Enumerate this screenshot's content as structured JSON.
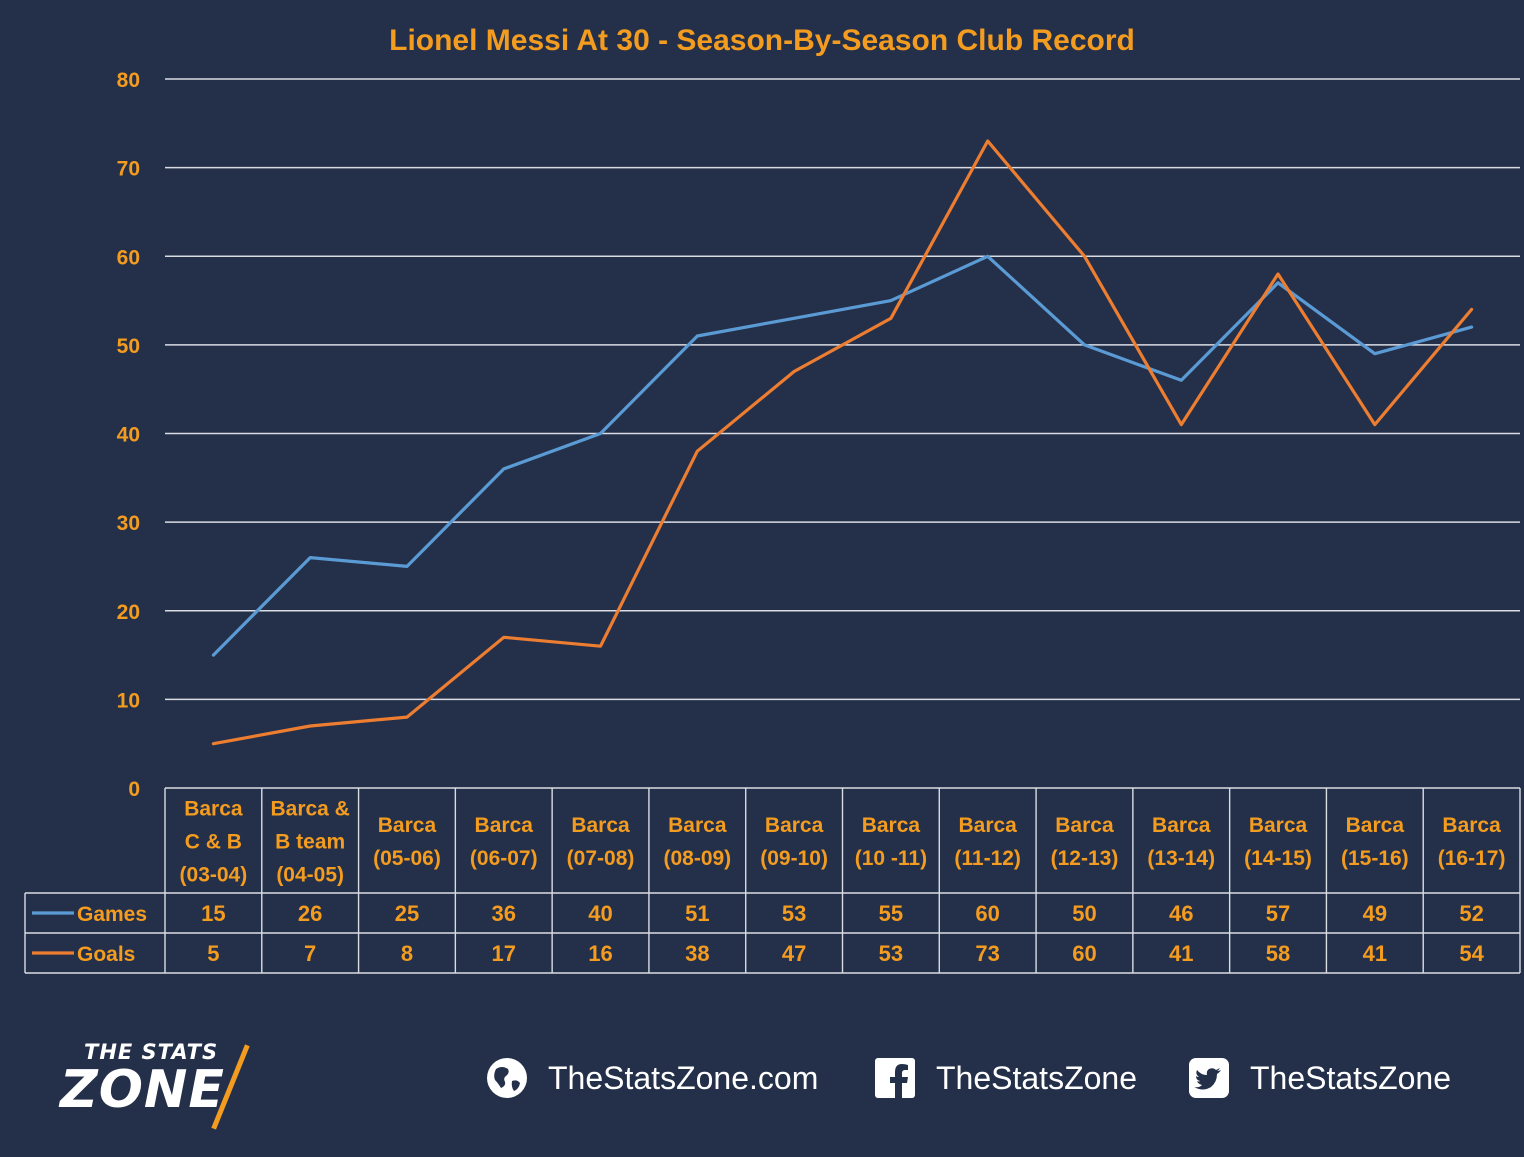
{
  "chart_data": {
    "type": "line",
    "title": "Lionel Messi At 30 - Season-By-Season Club Record",
    "categories": [
      [
        "Barca",
        "C & B",
        "(03-04)"
      ],
      [
        "Barca &",
        "B team",
        "(04-05)"
      ],
      [
        "Barca",
        "(05-06)"
      ],
      [
        "Barca",
        "(06-07)"
      ],
      [
        "Barca",
        "(07-08)"
      ],
      [
        "Barca",
        "(08-09)"
      ],
      [
        "Barca",
        "(09-10)"
      ],
      [
        "Barca",
        "(10 -11)"
      ],
      [
        "Barca",
        "(11-12)"
      ],
      [
        "Barca",
        "(12-13)"
      ],
      [
        "Barca",
        "(13-14)"
      ],
      [
        "Barca",
        "(14-15)"
      ],
      [
        "Barca",
        "(15-16)"
      ],
      [
        "Barca",
        "(16-17)"
      ]
    ],
    "series": [
      {
        "name": "Games",
        "color": "#5b9bd5",
        "values": [
          15,
          26,
          25,
          36,
          40,
          51,
          53,
          55,
          60,
          50,
          46,
          57,
          49,
          52
        ]
      },
      {
        "name": "Goals",
        "color": "#ed7d31",
        "values": [
          5,
          7,
          8,
          17,
          16,
          38,
          47,
          53,
          73,
          60,
          41,
          58,
          41,
          54
        ]
      }
    ],
    "ylim": [
      0,
      80
    ],
    "yticks": [
      0,
      10,
      20,
      30,
      40,
      50,
      60,
      70,
      80
    ],
    "grid": true,
    "legend": "data-table"
  },
  "colors": {
    "background": "#243049",
    "text_accent": "#f39c1f",
    "gridline": "#d9dce3"
  },
  "footer": {
    "logo_top": "THE STATS",
    "logo_main": "ZONE",
    "website": {
      "icon": "globe-icon",
      "text": "TheStatsZone.com"
    },
    "facebook": {
      "icon": "facebook-icon",
      "text": "TheStatsZone"
    },
    "twitter": {
      "icon": "twitter-icon",
      "text": "TheStatsZone"
    }
  }
}
